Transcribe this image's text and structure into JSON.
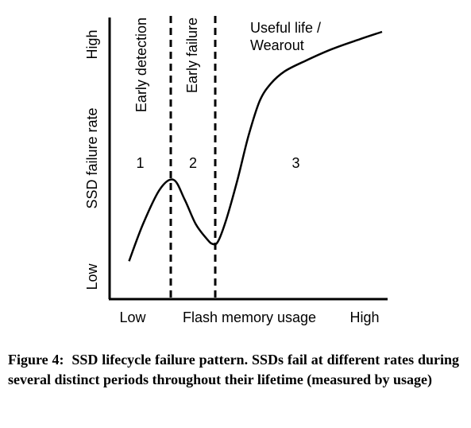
{
  "chart_data": {
    "type": "line",
    "xlabel": "Flash memory usage",
    "ylabel": "SSD failure rate",
    "x_tick_low": "Low",
    "x_tick_high": "High",
    "y_tick_low": "Low",
    "y_tick_high": "High",
    "xlim": [
      0,
      1
    ],
    "ylim": [
      0,
      1
    ],
    "grid": false,
    "legend": "none",
    "series": [
      {
        "x": [
          0.07,
          0.12,
          0.18,
          0.23,
          0.27,
          0.31,
          0.35,
          0.37,
          0.39,
          0.42,
          0.46,
          0.5,
          0.54,
          0.58,
          0.63,
          0.7,
          0.8,
          0.9,
          0.98
        ],
        "values": [
          0.07,
          0.22,
          0.36,
          0.4,
          0.32,
          0.22,
          0.16,
          0.14,
          0.15,
          0.24,
          0.4,
          0.58,
          0.72,
          0.79,
          0.84,
          0.88,
          0.93,
          0.97,
          1.0
        ]
      }
    ],
    "dividers": [
      0.22,
      0.38
    ],
    "regions": [
      {
        "number": "1",
        "label": "Early detection",
        "x": 0.11
      },
      {
        "number": "2",
        "label": "Early failure",
        "x": 0.3
      },
      {
        "number": "3",
        "label": "Useful life / Wearout",
        "label_lines": [
          "Useful life /",
          "Wearout"
        ],
        "x": 0.67
      }
    ]
  },
  "caption": {
    "label": "Figure 4:",
    "text": "SSD lifecycle failure pattern. SSDs fail at different rates during several distinct periods throughout their lifetime (measured by usage)"
  }
}
